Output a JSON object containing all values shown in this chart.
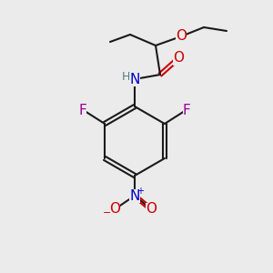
{
  "background_color": "#ebebeb",
  "bond_color": "#1a1a1a",
  "colors": {
    "O": "#cc0000",
    "N": "#0000cc",
    "F": "#990099",
    "H": "#4d8080",
    "C": "#1a1a1a"
  },
  "figsize": [
    3.0,
    3.0
  ],
  "dpi": 100
}
